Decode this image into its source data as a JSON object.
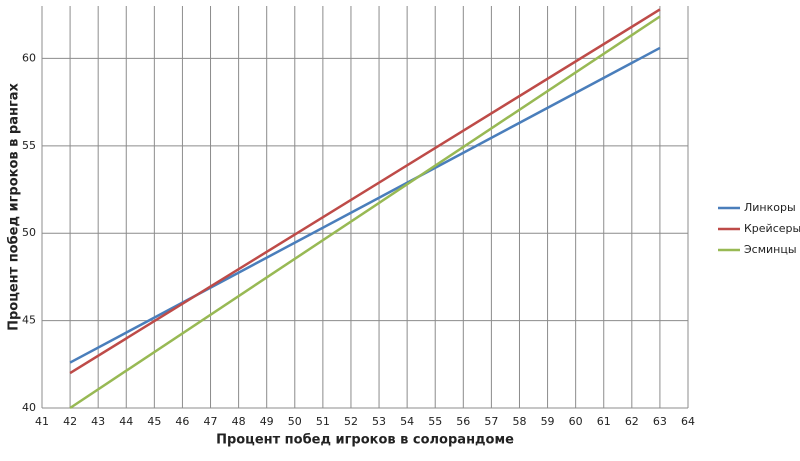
{
  "chart_data": {
    "type": "line",
    "x_label": "Процент побед игроков в солорандоме",
    "y_label": "Процент побед игроков  в рангах",
    "x": [
      42,
      63
    ],
    "series": [
      {
        "name": "Линкоры",
        "color": "#4a7ebb",
        "values": [
          42.6,
          60.6
        ]
      },
      {
        "name": "Крейсеры",
        "color": "#be4b48",
        "values": [
          42.0,
          62.8
        ]
      },
      {
        "name": "Эсминцы",
        "color": "#98b954",
        "values": [
          40.0,
          62.4
        ]
      }
    ],
    "xlim": [
      41,
      64
    ],
    "xticks": [
      41,
      42,
      43,
      44,
      45,
      46,
      47,
      48,
      49,
      50,
      51,
      52,
      53,
      54,
      55,
      56,
      57,
      58,
      59,
      60,
      61,
      62,
      63,
      64
    ],
    "ylim": [
      40,
      63
    ],
    "yticks": [
      40,
      45,
      50,
      55,
      60
    ],
    "grid": true,
    "legend": "right"
  }
}
